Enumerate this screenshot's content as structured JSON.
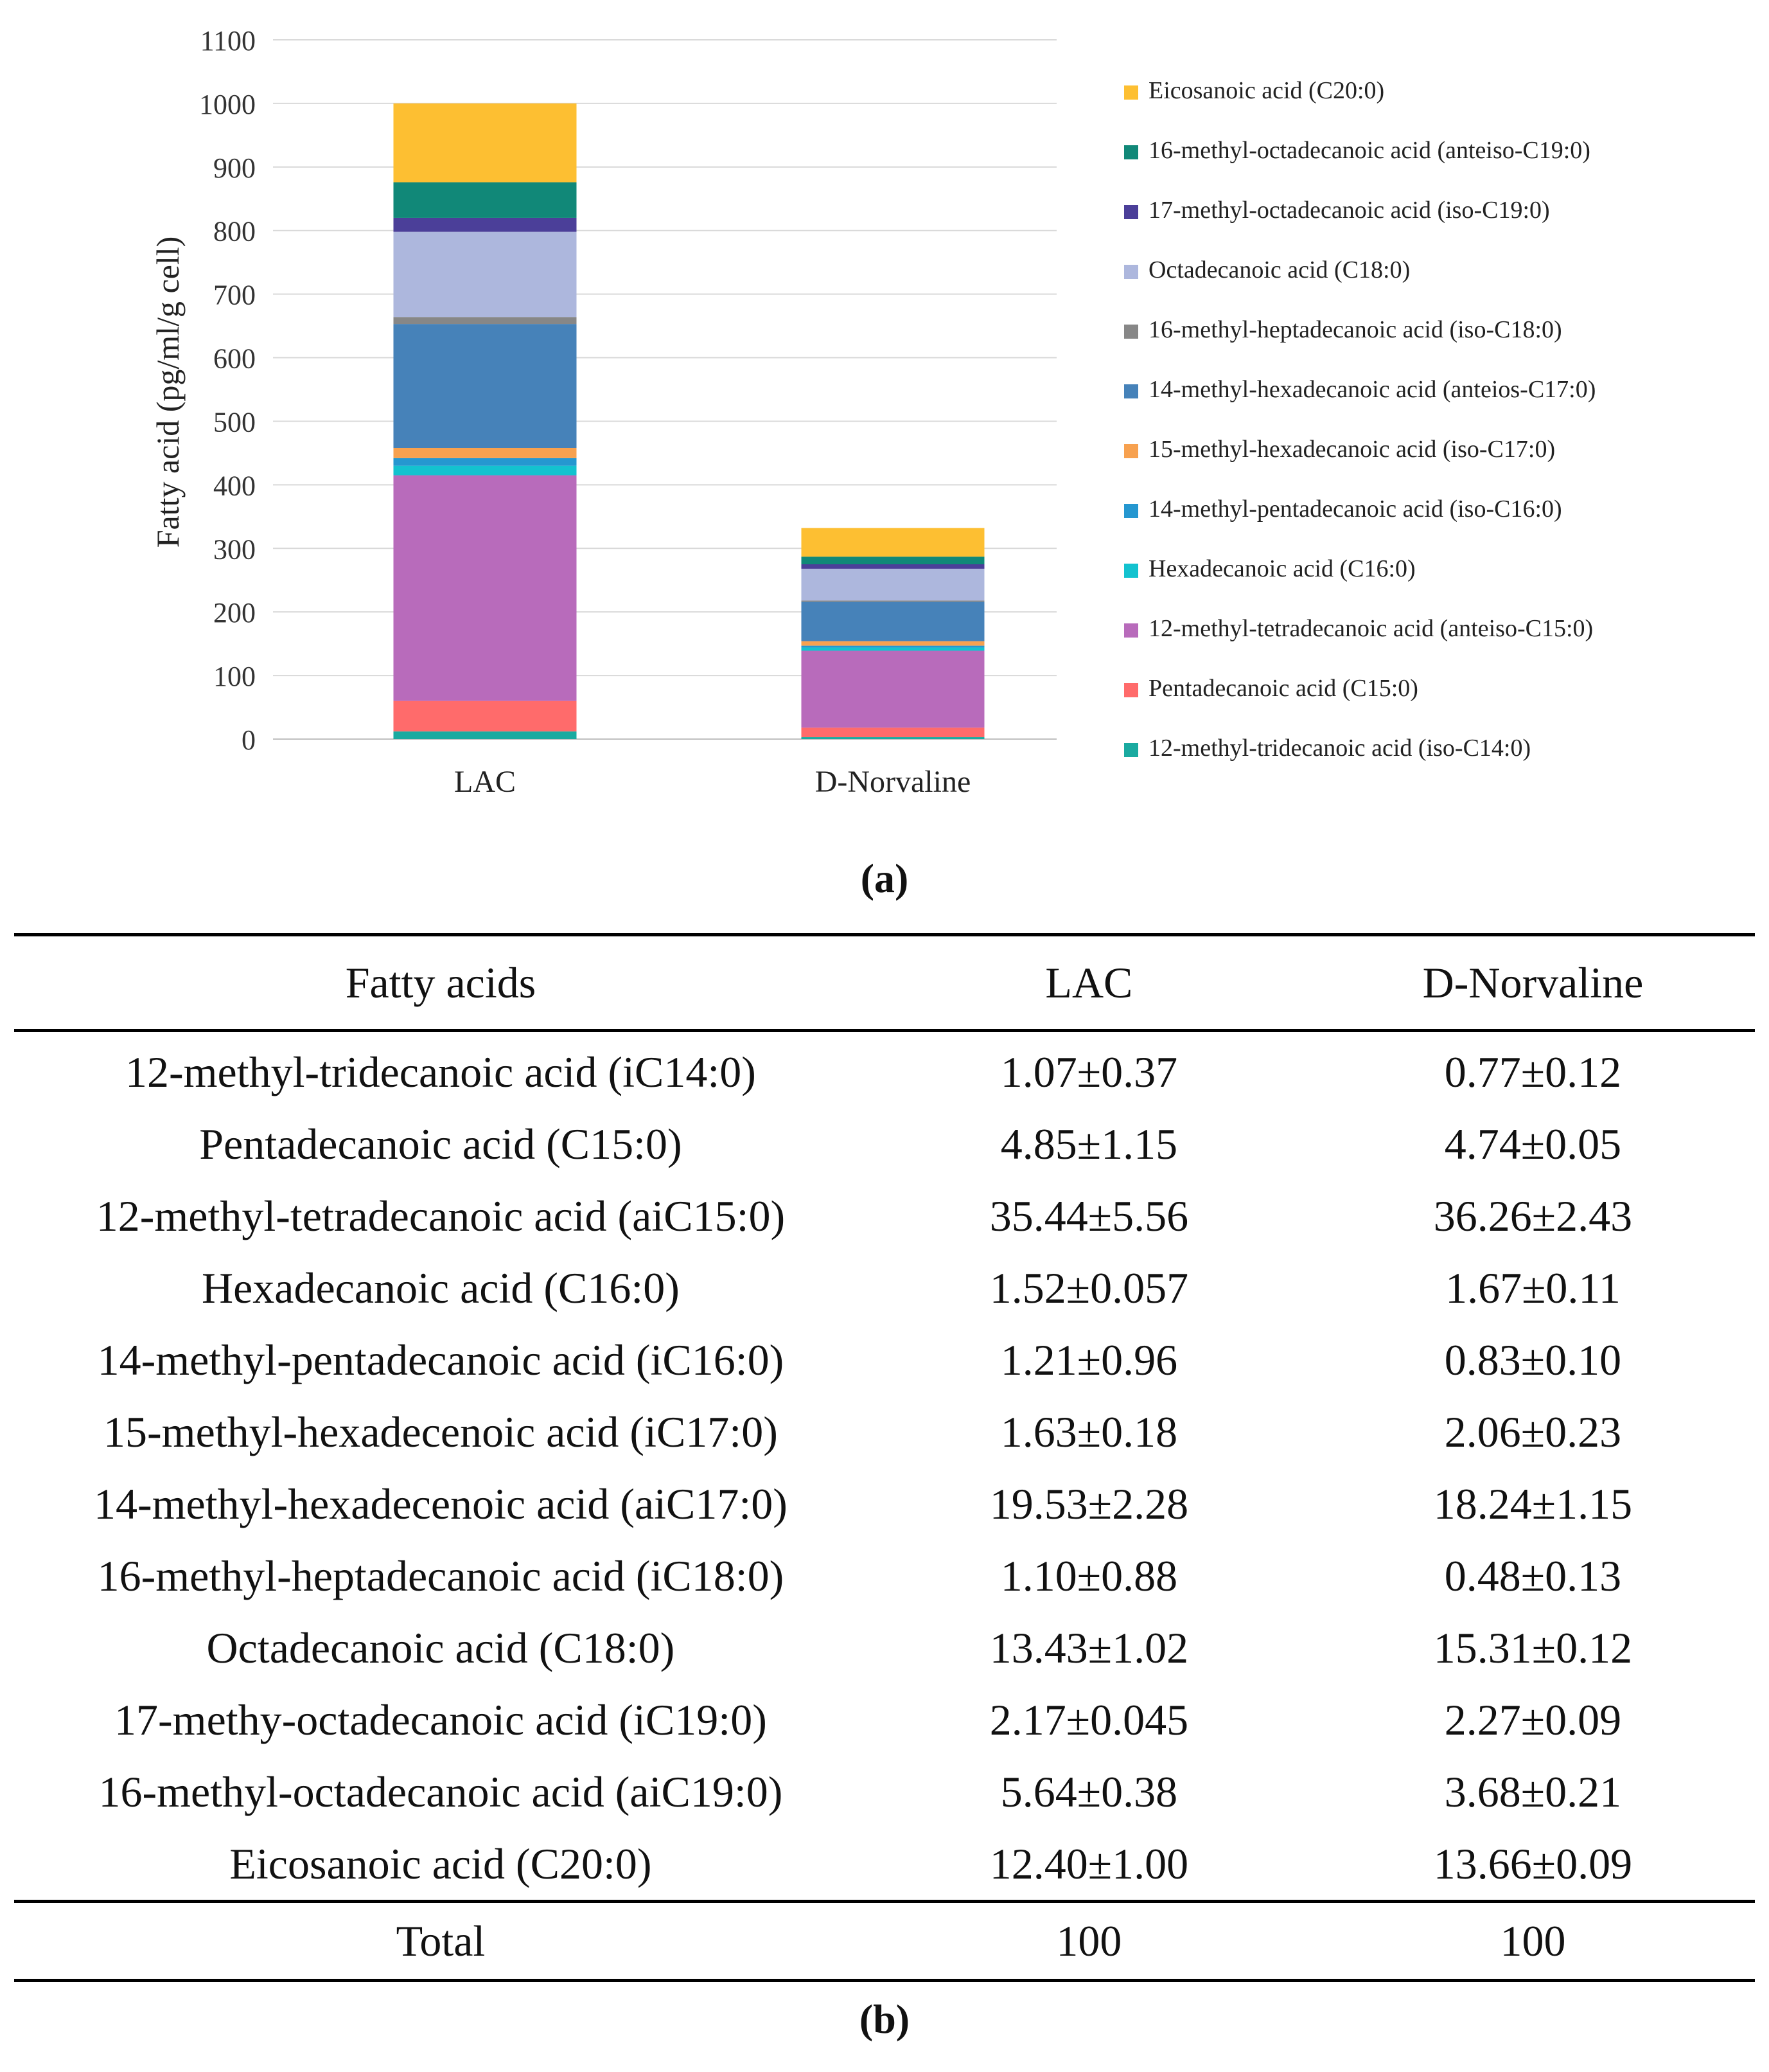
{
  "panel_a_label": "(a)",
  "panel_b_label": "(b)",
  "chart_data": {
    "type": "bar",
    "stacked": true,
    "title": "",
    "xlabel": "",
    "ylabel": "Fatty acid (pg/ml/g cell)",
    "ylim": [
      0,
      1100
    ],
    "yticks": [
      0,
      100,
      200,
      300,
      400,
      500,
      600,
      700,
      800,
      900,
      1000,
      1100
    ],
    "grid": true,
    "legend_position": "right",
    "categories": [
      "LAC",
      "D-Norvaline"
    ],
    "series": [
      {
        "name": "12-methyl-tridecanoic acid (iso-C14:0)",
        "color": "#1aaaa0",
        "values": [
          12,
          3
        ]
      },
      {
        "name": "Pentadecanoic acid (C15:0)",
        "color": "#ff6b6b",
        "values": [
          48,
          15
        ]
      },
      {
        "name": "12-methyl-tetradecanoic acid (anteiso-C15:0)",
        "color": "#b86bbb",
        "values": [
          355,
          121
        ]
      },
      {
        "name": "Hexadecanoic acid (C16:0)",
        "color": "#13c2cf",
        "values": [
          15,
          5
        ]
      },
      {
        "name": "14-methyl-pentadecanoic acid (iso-C16:0)",
        "color": "#2597d0",
        "values": [
          12,
          3
        ]
      },
      {
        "name": "15-methyl-hexadecanoic acid (iso-C17:0)",
        "color": "#f7a14f",
        "values": [
          16,
          7
        ]
      },
      {
        "name": "14-methyl-hexadecanoic acid (anteios-C17:0)",
        "color": "#4682b9",
        "values": [
          195,
          62
        ]
      },
      {
        "name": "16-methyl-heptadecanoic acid (iso-C18:0)",
        "color": "#878787",
        "values": [
          11,
          2
        ]
      },
      {
        "name": "Octadecanoic acid (C18:0)",
        "color": "#adb7dd",
        "values": [
          134,
          50
        ]
      },
      {
        "name": "17-methyl-octadecanoic acid (iso-C19:0)",
        "color": "#4b3f99",
        "values": [
          22,
          7
        ]
      },
      {
        "name": "16-methyl-octadecanoic acid (anteiso-C19:0)",
        "color": "#118878",
        "values": [
          56,
          12
        ]
      },
      {
        "name": "Eicosanoic acid (C20:0)",
        "color": "#fdbf32",
        "values": [
          124,
          45
        ]
      }
    ]
  },
  "table": {
    "headers": [
      "Fatty acids",
      "LAC",
      "D-Norvaline"
    ],
    "rows": [
      [
        "12-methyl-tridecanoic acid (iC14:0)",
        "1.07±0.37",
        "0.77±0.12"
      ],
      [
        "Pentadecanoic acid (C15:0)",
        "4.85±1.15",
        "4.74±0.05"
      ],
      [
        "12-methyl-tetradecanoic acid (aiC15:0)",
        "35.44±5.56",
        "36.26±2.43"
      ],
      [
        "Hexadecanoic acid (C16:0)",
        "1.52±0.057",
        "1.67±0.11"
      ],
      [
        "14-methyl-pentadecanoic acid (iC16:0)",
        "1.21±0.96",
        "0.83±0.10"
      ],
      [
        "15-methyl-hexadecenoic acid (iC17:0)",
        "1.63±0.18",
        "2.06±0.23"
      ],
      [
        "14-methyl-hexadecenoic acid (aiC17:0)",
        "19.53±2.28",
        "18.24±1.15"
      ],
      [
        "16-methyl-heptadecanoic acid (iC18:0)",
        "1.10±0.88",
        "0.48±0.13"
      ],
      [
        "Octadecanoic acid (C18:0)",
        "13.43±1.02",
        "15.31±0.12"
      ],
      [
        "17-methy-octadecanoic acid (iC19:0)",
        "2.17±0.045",
        "2.27±0.09"
      ],
      [
        "16-methyl-octadecanoic acid (aiC19:0)",
        "5.64±0.38",
        "3.68±0.21"
      ],
      [
        "Eicosanoic acid (C20:0)",
        "12.40±1.00",
        "13.66±0.09"
      ]
    ],
    "total": [
      "Total",
      "100",
      "100"
    ]
  }
}
